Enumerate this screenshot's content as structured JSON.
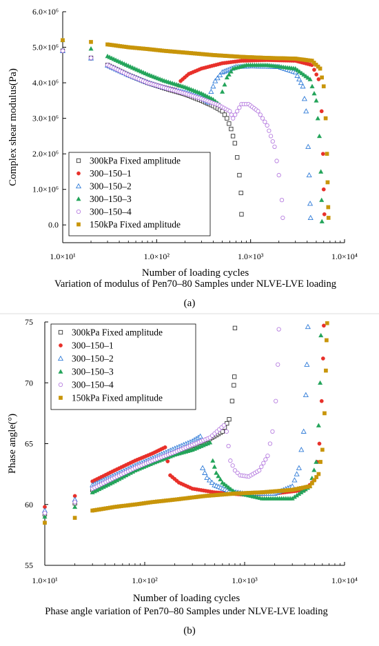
{
  "chart_data": [
    {
      "type": "scatter",
      "x_scale": "log",
      "xlabel": "Number of loading cycles",
      "ylabel": "Complex shear modulus(Pa)",
      "caption": "Variation of modulus of Pen70–80 Samples under NLVE-LVE loading",
      "panel_label": "(a)",
      "xlim": [
        10,
        10000
      ],
      "ylim": [
        -500000,
        6000000
      ],
      "x_tick_values": [
        10,
        100,
        1000,
        10000
      ],
      "x_tick_labels": [
        "1.0×10¹",
        "1.0×10²",
        "1.0×10³",
        "1.0×10⁴"
      ],
      "y_tick_values": [
        0,
        1000000,
        2000000,
        3000000,
        4000000,
        5000000,
        6000000
      ],
      "y_tick_labels": [
        "0.0",
        "1.0×10⁶",
        "2.0×10⁶",
        "3.0×10⁶",
        "4.0×10⁶",
        "5.0×10⁶",
        "6.0×10⁶"
      ],
      "legend_position": "bottom-left",
      "series": [
        {
          "name": "300kPa Fixed amplitude",
          "marker": "square-open",
          "color": "#333333",
          "points": [
            [
              10,
              4900000
            ],
            [
              20,
              4700000
            ],
            [
              30,
              4500000
            ],
            [
              50,
              4220000
            ],
            [
              80,
              4000000
            ],
            [
              120,
              3850000
            ],
            [
              200,
              3680000
            ],
            [
              300,
              3500000
            ],
            [
              400,
              3350000
            ],
            [
              500,
              3200000
            ],
            [
              560,
              3000000
            ],
            [
              620,
              2700000
            ],
            [
              680,
              2300000
            ],
            [
              720,
              1900000
            ],
            [
              760,
              1400000
            ],
            [
              790,
              900000
            ],
            [
              800,
              300000
            ]
          ]
        },
        {
          "name": "300–150–1",
          "marker": "circle-filled",
          "color": "#e8302a",
          "points": [
            [
              10,
              4900000
            ],
            [
              20,
              4680000
            ],
            [
              30,
              4480000
            ],
            [
              50,
              4220000
            ],
            [
              80,
              4010000
            ],
            [
              120,
              3880000
            ],
            [
              160,
              3800000
            ],
            [
              180,
              4050000
            ],
            [
              220,
              4250000
            ],
            [
              300,
              4400000
            ],
            [
              500,
              4550000
            ],
            [
              800,
              4620000
            ],
            [
              1500,
              4640000
            ],
            [
              3000,
              4620000
            ],
            [
              4500,
              4500000
            ],
            [
              5300,
              4100000
            ],
            [
              5700,
              3200000
            ],
            [
              5900,
              2000000
            ],
            [
              6000,
              1000000
            ],
            [
              6100,
              300000
            ]
          ]
        },
        {
          "name": "300–150–2",
          "marker": "triangle-open",
          "color": "#2f7bd8",
          "points": [
            [
              10,
              4900000
            ],
            [
              20,
              4690000
            ],
            [
              30,
              4490000
            ],
            [
              50,
              4220000
            ],
            [
              80,
              4010000
            ],
            [
              120,
              3870000
            ],
            [
              200,
              3730000
            ],
            [
              300,
              3580000
            ],
            [
              360,
              3450000
            ],
            [
              380,
              3750000
            ],
            [
              420,
              4050000
            ],
            [
              500,
              4300000
            ],
            [
              700,
              4450000
            ],
            [
              1000,
              4470000
            ],
            [
              2000,
              4450000
            ],
            [
              3000,
              4300000
            ],
            [
              3600,
              3900000
            ],
            [
              3900,
              3200000
            ],
            [
              4100,
              2200000
            ],
            [
              4200,
              1400000
            ],
            [
              4300,
              600000
            ],
            [
              4350,
              200000
            ]
          ]
        },
        {
          "name": "300–150–3",
          "marker": "triangle-filled",
          "color": "#23a45a",
          "points": [
            [
              10,
              5200000
            ],
            [
              20,
              4960000
            ],
            [
              30,
              4750000
            ],
            [
              50,
              4480000
            ],
            [
              80,
              4240000
            ],
            [
              120,
              4060000
            ],
            [
              200,
              3880000
            ],
            [
              300,
              3700000
            ],
            [
              400,
              3530000
            ],
            [
              470,
              3380000
            ],
            [
              500,
              3750000
            ],
            [
              560,
              4150000
            ],
            [
              650,
              4400000
            ],
            [
              900,
              4500000
            ],
            [
              1500,
              4500000
            ],
            [
              3000,
              4400000
            ],
            [
              4300,
              4100000
            ],
            [
              5000,
              3500000
            ],
            [
              5400,
              2500000
            ],
            [
              5600,
              1500000
            ],
            [
              5700,
              700000
            ],
            [
              5750,
              100000
            ]
          ]
        },
        {
          "name": "300–150–4",
          "marker": "circle-open",
          "color": "#b77ee0",
          "points": [
            [
              10,
              4900000
            ],
            [
              20,
              4700000
            ],
            [
              30,
              4500000
            ],
            [
              50,
              4220000
            ],
            [
              80,
              4000000
            ],
            [
              120,
              3860000
            ],
            [
              200,
              3700000
            ],
            [
              300,
              3550000
            ],
            [
              450,
              3380000
            ],
            [
              600,
              3200000
            ],
            [
              650,
              3000000
            ],
            [
              720,
              3200000
            ],
            [
              800,
              3400000
            ],
            [
              950,
              3400000
            ],
            [
              1200,
              3200000
            ],
            [
              1500,
              2800000
            ],
            [
              1800,
              2200000
            ],
            [
              2000,
              1400000
            ],
            [
              2150,
              700000
            ],
            [
              2200,
              200000
            ]
          ]
        },
        {
          "name": "150kPa Fixed amplitude",
          "marker": "square-filled",
          "color": "#c8950a",
          "points": [
            [
              10,
              5200000
            ],
            [
              20,
              5150000
            ],
            [
              30,
              5080000
            ],
            [
              50,
              5000000
            ],
            [
              80,
              4950000
            ],
            [
              120,
              4900000
            ],
            [
              200,
              4850000
            ],
            [
              400,
              4780000
            ],
            [
              800,
              4730000
            ],
            [
              1500,
              4700000
            ],
            [
              3000,
              4680000
            ],
            [
              4500,
              4620000
            ],
            [
              5500,
              4400000
            ],
            [
              6000,
              3900000
            ],
            [
              6300,
              3000000
            ],
            [
              6500,
              2000000
            ],
            [
              6600,
              1200000
            ],
            [
              6700,
              500000
            ],
            [
              6750,
              200000
            ]
          ]
        }
      ]
    },
    {
      "type": "scatter",
      "x_scale": "log",
      "xlabel": "Number of loading cycles",
      "ylabel": "Phase angle(°)",
      "caption": "Phase angle variation of Pen70–80 Samples under NLVE-LVE loading",
      "panel_label": "(b)",
      "xlim": [
        10,
        10000
      ],
      "ylim": [
        55,
        75
      ],
      "x_tick_values": [
        10,
        100,
        1000,
        10000
      ],
      "x_tick_labels": [
        "1.0×10¹",
        "1.0×10²",
        "1.0×10³",
        "1.0×10⁴"
      ],
      "y_tick_values": [
        55,
        60,
        65,
        70,
        75
      ],
      "y_tick_labels": [
        "55",
        "60",
        "65",
        "70",
        "75"
      ],
      "legend_position": "top-left",
      "series": [
        {
          "name": "300kPa Fixed amplitude",
          "marker": "square-open",
          "color": "#333333",
          "points": [
            [
              10,
              59.2
            ],
            [
              20,
              60.1
            ],
            [
              30,
              61.2
            ],
            [
              50,
              62.1
            ],
            [
              80,
              62.9
            ],
            [
              120,
              63.5
            ],
            [
              200,
              64.2
            ],
            [
              300,
              64.8
            ],
            [
              450,
              65.4
            ],
            [
              600,
              66.0
            ],
            [
              700,
              67.0
            ],
            [
              750,
              68.5
            ],
            [
              780,
              69.8
            ],
            [
              790,
              70.5
            ],
            [
              800,
              74.5
            ]
          ]
        },
        {
          "name": "300–150–1",
          "marker": "circle-filled",
          "color": "#e8302a",
          "points": [
            [
              10,
              59.8
            ],
            [
              20,
              60.7
            ],
            [
              30,
              61.9
            ],
            [
              50,
              62.8
            ],
            [
              80,
              63.6
            ],
            [
              120,
              64.2
            ],
            [
              160,
              64.7
            ],
            [
              180,
              62.4
            ],
            [
              220,
              61.8
            ],
            [
              300,
              61.3
            ],
            [
              500,
              61.0
            ],
            [
              1000,
              60.8
            ],
            [
              2000,
              60.9
            ],
            [
              4000,
              61.2
            ],
            [
              5000,
              62.0
            ],
            [
              5600,
              65.0
            ],
            [
              5900,
              68.5
            ],
            [
              6100,
              72.0
            ],
            [
              6200,
              74.7
            ]
          ]
        },
        {
          "name": "300–150–2",
          "marker": "triangle-open",
          "color": "#2f7bd8",
          "points": [
            [
              10,
              59.5
            ],
            [
              20,
              60.4
            ],
            [
              30,
              61.6
            ],
            [
              50,
              62.4
            ],
            [
              80,
              63.2
            ],
            [
              120,
              63.8
            ],
            [
              200,
              64.6
            ],
            [
              300,
              65.2
            ],
            [
              360,
              65.6
            ],
            [
              380,
              63.0
            ],
            [
              420,
              62.2
            ],
            [
              500,
              61.6
            ],
            [
              700,
              61.1
            ],
            [
              1000,
              60.9
            ],
            [
              2000,
              60.9
            ],
            [
              3000,
              61.5
            ],
            [
              3500,
              63.0
            ],
            [
              3900,
              66.0
            ],
            [
              4100,
              69.0
            ],
            [
              4200,
              71.5
            ],
            [
              4300,
              74.6
            ]
          ]
        },
        {
          "name": "300–150–3",
          "marker": "triangle-filled",
          "color": "#23a45a",
          "points": [
            [
              10,
              59.0
            ],
            [
              20,
              59.8
            ],
            [
              30,
              61.0
            ],
            [
              50,
              61.9
            ],
            [
              80,
              62.8
            ],
            [
              120,
              63.4
            ],
            [
              200,
              64.1
            ],
            [
              300,
              64.5
            ],
            [
              450,
              65.1
            ],
            [
              480,
              63.6
            ],
            [
              520,
              62.6
            ],
            [
              600,
              61.8
            ],
            [
              800,
              61.0
            ],
            [
              1500,
              60.5
            ],
            [
              3000,
              60.5
            ],
            [
              4500,
              61.5
            ],
            [
              5200,
              63.5
            ],
            [
              5500,
              66.5
            ],
            [
              5700,
              70.0
            ],
            [
              5800,
              73.9
            ]
          ]
        },
        {
          "name": "300–150–4",
          "marker": "circle-open",
          "color": "#b77ee0",
          "points": [
            [
              10,
              59.3
            ],
            [
              20,
              60.2
            ],
            [
              30,
              61.3
            ],
            [
              50,
              62.2
            ],
            [
              80,
              63.0
            ],
            [
              120,
              63.6
            ],
            [
              200,
              64.3
            ],
            [
              300,
              64.9
            ],
            [
              450,
              65.5
            ],
            [
              620,
              66.5
            ],
            [
              660,
              66.0
            ],
            [
              720,
              63.6
            ],
            [
              800,
              62.8
            ],
            [
              900,
              62.4
            ],
            [
              1100,
              62.3
            ],
            [
              1400,
              62.8
            ],
            [
              1700,
              64.0
            ],
            [
              1900,
              66.0
            ],
            [
              2050,
              68.5
            ],
            [
              2150,
              71.5
            ],
            [
              2200,
              74.4
            ]
          ]
        },
        {
          "name": "150kPa Fixed amplitude",
          "marker": "square-filled",
          "color": "#c8950a",
          "points": [
            [
              10,
              58.5
            ],
            [
              20,
              58.9
            ],
            [
              30,
              59.5
            ],
            [
              50,
              59.8
            ],
            [
              80,
              60.0
            ],
            [
              120,
              60.2
            ],
            [
              200,
              60.4
            ],
            [
              400,
              60.7
            ],
            [
              800,
              60.9
            ],
            [
              1500,
              61.0
            ],
            [
              3000,
              61.2
            ],
            [
              4500,
              61.5
            ],
            [
              5500,
              62.5
            ],
            [
              6000,
              64.5
            ],
            [
              6300,
              67.5
            ],
            [
              6500,
              71.0
            ],
            [
              6600,
              73.5
            ],
            [
              6700,
              74.9
            ]
          ]
        }
      ]
    }
  ]
}
